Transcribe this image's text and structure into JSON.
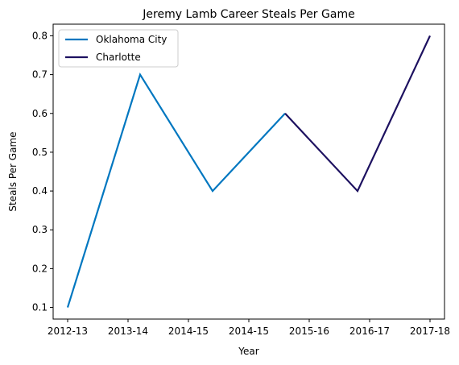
{
  "chart_data": {
    "type": "line",
    "title": "Jeremy Lamb Career Steals Per Game",
    "xlabel": "Year",
    "ylabel": "Steals Per Game",
    "x_tick_labels": [
      "2012-13",
      "2013-14",
      "2014-15",
      "2014-15",
      "2015-16",
      "2016-17",
      "2017-18"
    ],
    "ylim": [
      0.07,
      0.83
    ],
    "y_ticks": [
      0.1,
      0.2,
      0.3,
      0.4,
      0.5,
      0.6,
      0.7,
      0.8
    ],
    "grid": false,
    "legend_position": "top-left",
    "series": [
      {
        "name": "Oklahoma City",
        "color": "#0077C0",
        "points": [
          {
            "x": "2012-13",
            "y": 0.1
          },
          {
            "x": "2013-14",
            "y": 0.7
          },
          {
            "x": "2014-15",
            "y": 0.4
          },
          {
            "x": "2015-16",
            "y": 0.6
          }
        ]
      },
      {
        "name": "Charlotte",
        "color": "#1D1160",
        "points": [
          {
            "x": "2015-16",
            "y": 0.6
          },
          {
            "x": "2016-17",
            "y": 0.4
          },
          {
            "x": "2017-18",
            "y": 0.8
          }
        ]
      }
    ]
  }
}
